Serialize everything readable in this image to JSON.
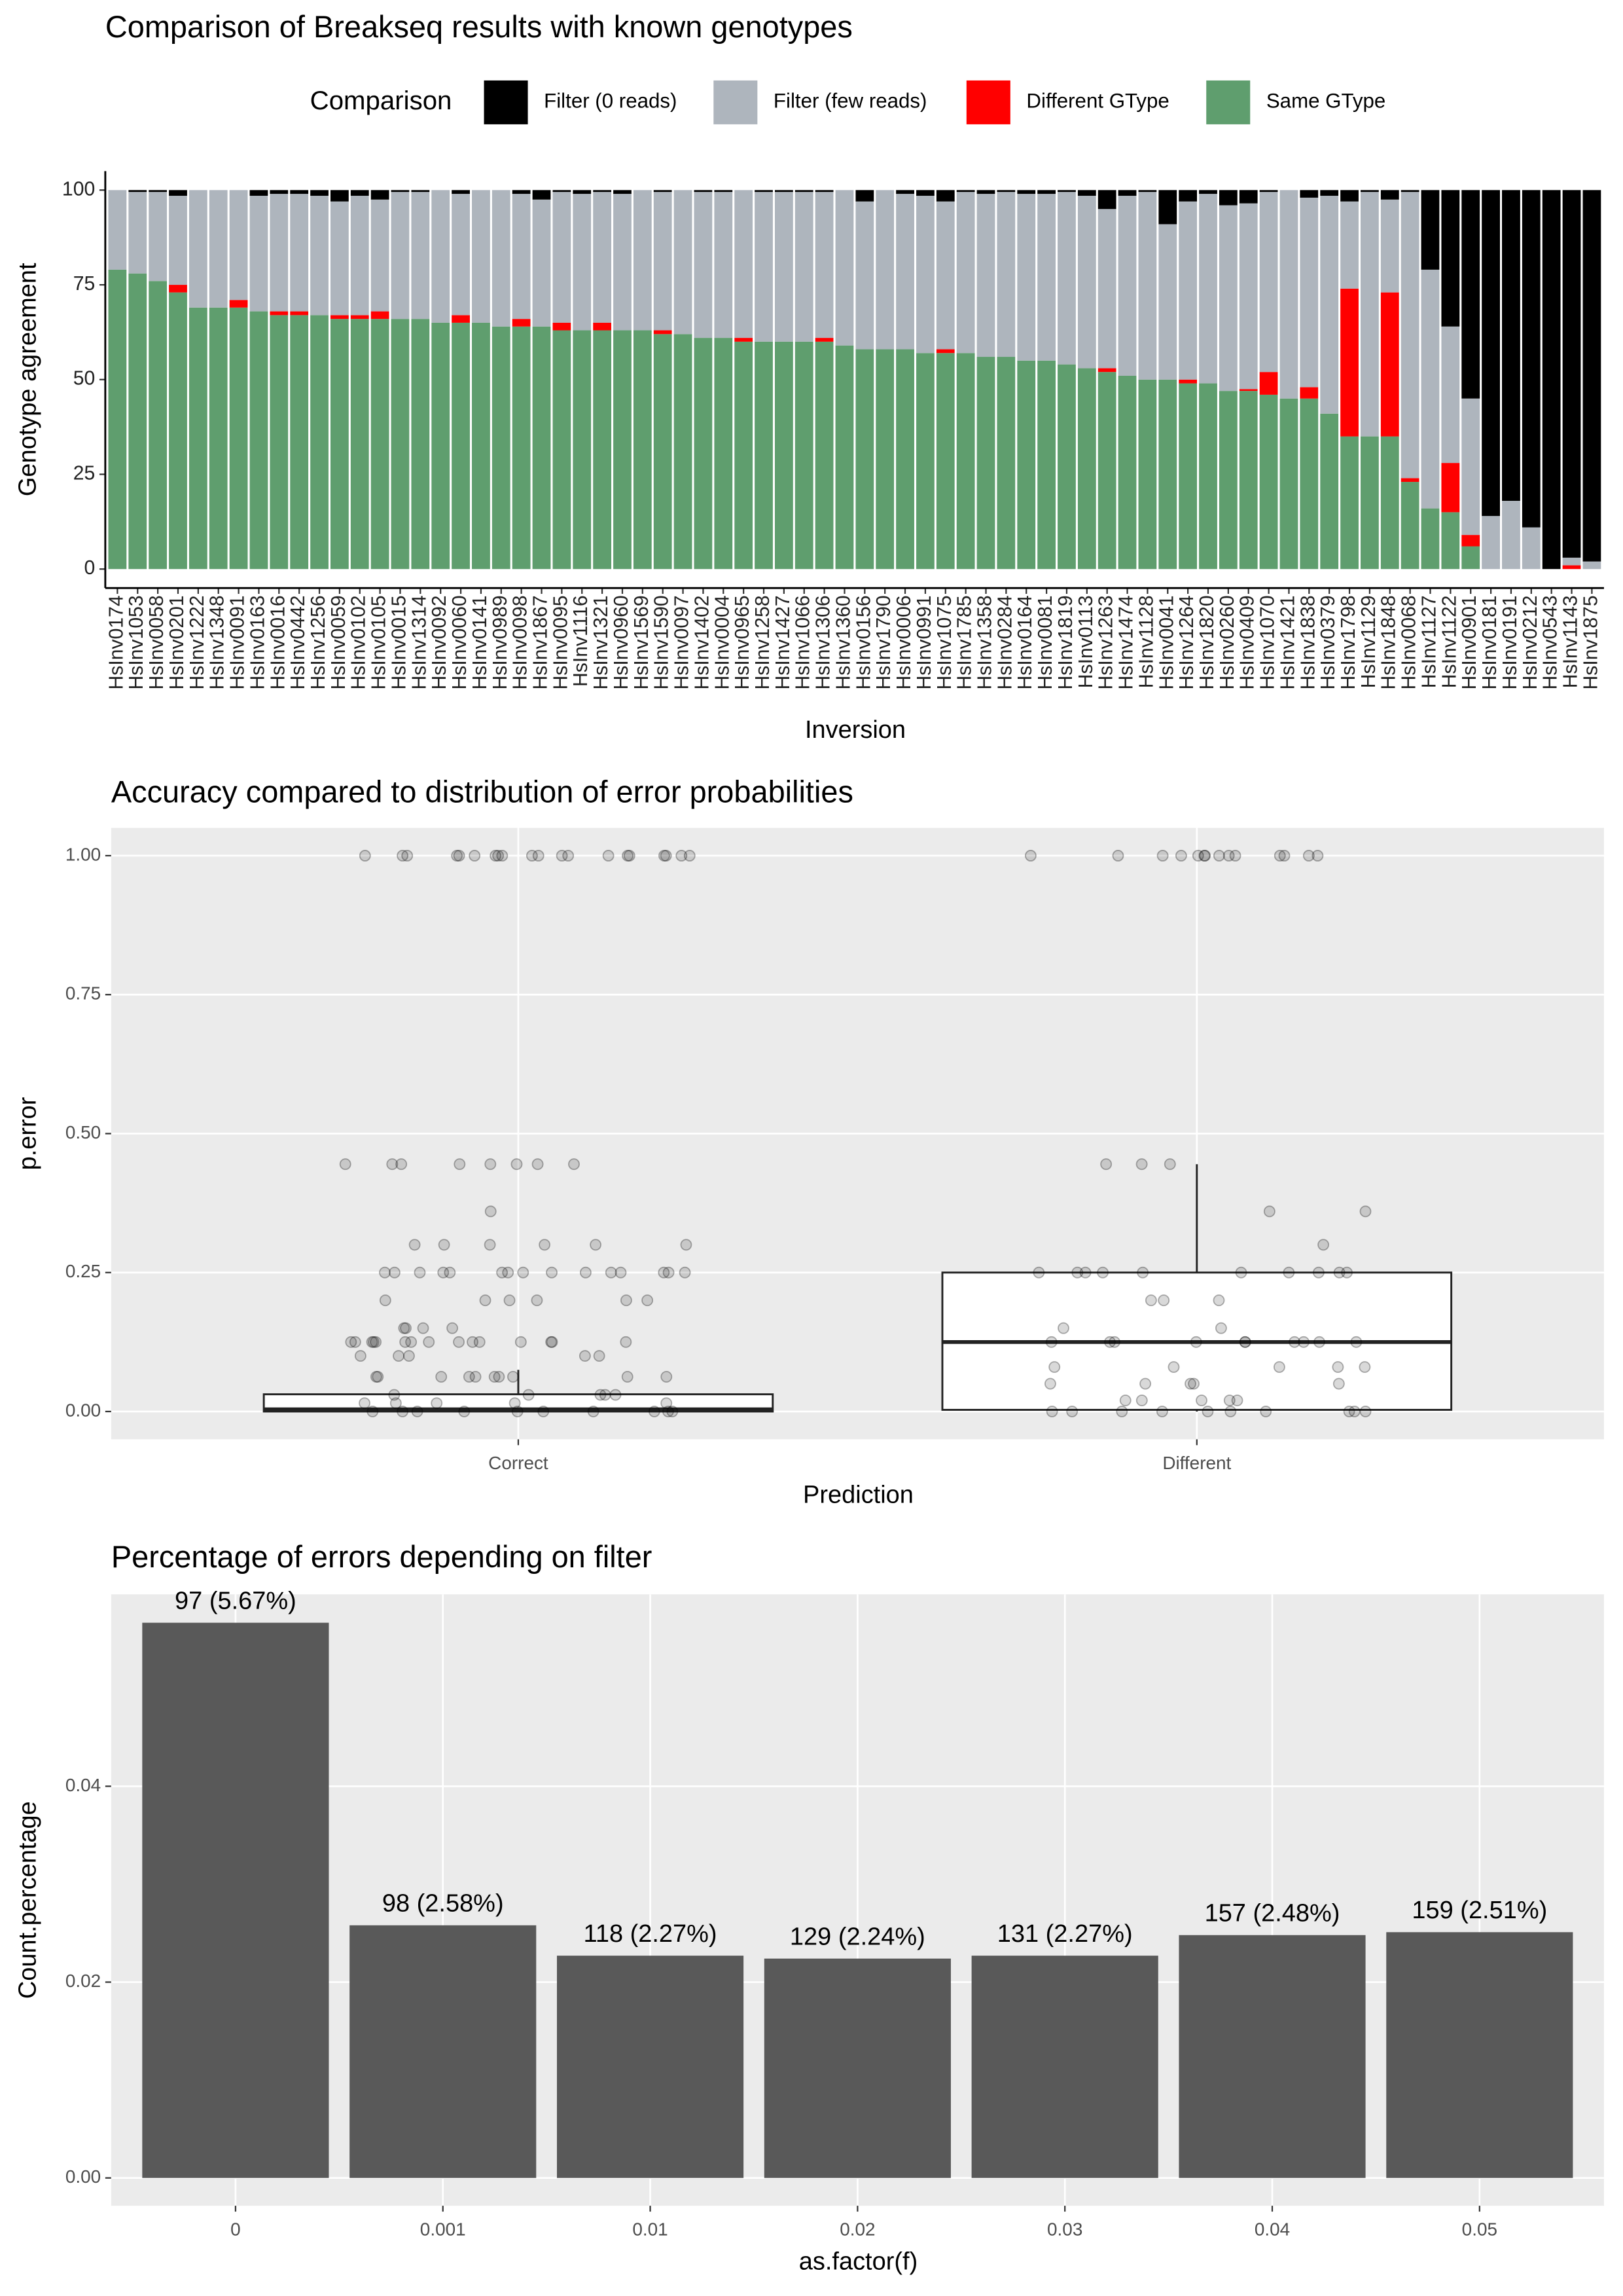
{
  "chart_data": [
    {
      "type": "stacked_bar",
      "title": "Comparison of Breakseq results with known genotypes",
      "x_label": "Inversion",
      "y_label": "Genotype agreement",
      "legend_title": "Comparison",
      "legend_position": "top",
      "categories": [
        "HsInv0174",
        "HsInv1053",
        "HsInv0058",
        "HsInv0201",
        "HsInv1222",
        "HsInv1348",
        "HsInv0091",
        "HsInv0163",
        "HsInv0016",
        "HsInv0442",
        "HsInv1256",
        "HsInv0059",
        "HsInv0102",
        "HsInv0105",
        "HsInv0015",
        "HsInv1314",
        "HsInv0092",
        "HsInv0060",
        "HsInv0141",
        "HsInv0989",
        "HsInv0098",
        "HsInv1867",
        "HsInv0095",
        "HsInv1116",
        "HsInv1321",
        "HsInv0960",
        "HsInv1569",
        "HsInv1590",
        "HsInv0097",
        "HsInv1402",
        "HsInv0004",
        "HsInv0965",
        "HsInv1258",
        "HsInv1427",
        "HsInv1066",
        "HsInv1306",
        "HsInv1360",
        "HsInv0156",
        "HsInv1790",
        "HsInv0006",
        "HsInv0991",
        "HsInv1075",
        "HsInv1785",
        "HsInv1358",
        "HsInv0284",
        "HsInv0164",
        "HsInv0081",
        "HsInv1819",
        "HsInv0113",
        "HsInv1263",
        "HsInv1474",
        "HsInv1128",
        "HsInv0041",
        "HsInv1264",
        "HsInv1820",
        "HsInv0260",
        "HsInv0409",
        "HsInv1070",
        "HsInv1421",
        "HsInv1838",
        "HsInv0379",
        "HsInv1798",
        "HsInv1129",
        "HsInv1848",
        "HsInv0068",
        "HsInv1127",
        "HsInv1122",
        "HsInv0901",
        "HsInv0181",
        "HsInv0191",
        "HsInv0212",
        "HsInv0543",
        "HsInv1143",
        "HsInv1875"
      ],
      "series": [
        {
          "name": "Filter (0 reads)",
          "color": "#000000",
          "values": [
            0,
            0.5,
            0.5,
            1.5,
            0,
            0,
            0,
            1.5,
            1,
            1,
            1.5,
            3,
            1.5,
            2.5,
            0.5,
            0.5,
            0,
            1,
            0,
            0,
            1,
            2.5,
            0.5,
            1,
            0.5,
            1,
            0,
            0.5,
            0,
            0.5,
            0.5,
            0,
            0.5,
            0.5,
            0.5,
            0.5,
            0,
            3,
            0,
            1,
            1.5,
            3,
            0.5,
            1,
            0.5,
            1,
            1,
            0.5,
            1.5,
            5,
            1.5,
            0.5,
            9,
            3,
            1,
            4,
            3.5,
            0.5,
            0,
            2,
            1.5,
            3,
            0.5,
            2.5,
            0.5,
            21,
            36,
            55,
            86,
            82,
            89,
            100,
            97,
            98
          ]
        },
        {
          "name": "Filter (few reads)",
          "color": "#aeb5bd",
          "values": [
            21,
            21.5,
            23.5,
            23.5,
            31,
            31,
            29,
            30.5,
            31,
            31,
            31.5,
            30,
            31.5,
            29.5,
            33.5,
            33.5,
            35,
            32,
            35,
            36,
            33,
            33.5,
            34.5,
            36,
            34.5,
            36,
            37,
            36.5,
            38,
            38.5,
            38.5,
            39,
            39.5,
            39.5,
            39.5,
            38.5,
            41,
            39,
            42,
            41,
            41.5,
            39,
            42.5,
            43,
            43.5,
            44,
            44,
            45.5,
            45.5,
            42,
            47.5,
            49.5,
            41,
            47,
            50,
            49,
            49,
            47.5,
            55,
            50,
            57.5,
            23,
            64.5,
            24.5,
            75.5,
            63,
            36,
            36,
            14,
            18,
            11,
            0,
            2,
            2
          ]
        },
        {
          "name": "Different GType",
          "color": "#ff0000",
          "values": [
            0,
            0,
            0,
            2,
            0,
            0,
            2,
            0,
            1,
            1,
            0,
            1,
            1,
            2,
            0,
            0,
            0,
            2,
            0,
            0,
            2,
            0,
            2,
            0,
            2,
            0,
            0,
            1,
            0,
            0,
            0,
            1,
            0,
            0,
            0,
            1,
            0,
            0,
            0,
            0,
            0,
            1,
            0,
            0,
            0,
            0,
            0,
            0,
            0,
            1,
            0,
            0,
            0,
            1,
            0,
            0,
            0.5,
            6,
            0,
            3,
            0,
            39,
            0,
            38,
            1,
            0,
            13,
            3,
            0,
            0,
            0,
            0,
            1,
            0
          ]
        },
        {
          "name": "Same GType",
          "color": "#5f9e6e",
          "values": [
            79,
            78,
            76,
            73,
            69,
            69,
            69,
            68,
            67,
            67,
            67,
            66,
            66,
            66,
            66,
            66,
            65,
            65,
            65,
            64,
            64,
            64,
            63,
            63,
            63,
            63,
            63,
            62,
            62,
            61,
            61,
            60,
            60,
            60,
            60,
            60,
            59,
            58,
            58,
            58,
            57,
            57,
            57,
            56,
            56,
            55,
            55,
            54,
            53,
            52,
            51,
            50,
            50,
            49,
            49,
            47,
            47,
            46,
            45,
            45,
            41,
            35,
            35,
            35,
            23,
            16,
            15,
            6,
            0,
            0,
            0,
            0,
            0,
            0
          ]
        }
      ],
      "ylim": [
        -5,
        105
      ],
      "yticks": [
        0,
        25,
        50,
        75,
        100
      ],
      "grid": false
    },
    {
      "type": "box",
      "title": "Accuracy compared to distribution of error probabilities",
      "x_label": "Prediction",
      "y_label": "p.error",
      "categories": [
        "Correct",
        "Different"
      ],
      "boxes": [
        {
          "min": 0,
          "q1": 0,
          "median": 0.004,
          "q3": 0.031,
          "max": 0.075
        },
        {
          "min": 0,
          "q1": 0.003,
          "median": 0.125,
          "q3": 0.25,
          "max": 0.445
        }
      ],
      "points": [
        [
          1,
          1,
          1,
          1,
          1,
          1,
          1,
          1,
          1,
          1,
          1,
          1,
          1,
          1,
          1,
          1,
          1,
          1,
          1,
          1,
          0.445,
          0.445,
          0.445,
          0.445,
          0.445,
          0.445,
          0.445,
          0.445,
          0.36,
          0.3,
          0.3,
          0.3,
          0.3,
          0.3,
          0.3,
          0.25,
          0.25,
          0.25,
          0.25,
          0.25,
          0.25,
          0.25,
          0.25,
          0.25,
          0.25,
          0.25,
          0.25,
          0.25,
          0.25,
          0.25,
          0.2,
          0.2,
          0.2,
          0.2,
          0.2,
          0.2,
          0.15,
          0.15,
          0.15,
          0.15,
          0.125,
          0.125,
          0.125,
          0.125,
          0.125,
          0.125,
          0.125,
          0.125,
          0.125,
          0.125,
          0.125,
          0.125,
          0.125,
          0.125,
          0.125,
          0.1,
          0.1,
          0.1,
          0.1,
          0.1,
          0.0625,
          0.0625,
          0.0625,
          0.0625,
          0.0625,
          0.0625,
          0.0625,
          0.0625,
          0.0625,
          0.0625,
          0.03,
          0.03,
          0.03,
          0.03,
          0.03,
          0.015,
          0.015,
          0.015,
          0.015,
          0.015,
          0,
          0,
          0,
          0,
          0,
          0,
          0,
          0,
          0,
          0
        ],
        [
          1,
          1,
          1,
          1,
          1,
          1,
          1,
          1,
          1,
          1,
          1,
          1,
          1,
          1,
          0.445,
          0.445,
          0.445,
          0.36,
          0.36,
          0.3,
          0.25,
          0.25,
          0.25,
          0.25,
          0.25,
          0.25,
          0.25,
          0.25,
          0.25,
          0.25,
          0.2,
          0.2,
          0.2,
          0.15,
          0.15,
          0.125,
          0.125,
          0.125,
          0.125,
          0.125,
          0.125,
          0.125,
          0.125,
          0.125,
          0.125,
          0.08,
          0.08,
          0.08,
          0.08,
          0.08,
          0.05,
          0.05,
          0.05,
          0.05,
          0.05,
          0.02,
          0.02,
          0.02,
          0.02,
          0.02,
          0,
          0,
          0,
          0,
          0,
          0,
          0,
          0,
          0,
          0
        ]
      ],
      "ylim": [
        -0.05,
        1.05
      ],
      "yticks": [
        {
          "value": 0,
          "label": "0.00"
        },
        {
          "value": 0.25,
          "label": "0.25"
        },
        {
          "value": 0.5,
          "label": "0.50"
        },
        {
          "value": 0.75,
          "label": "0.75"
        },
        {
          "value": 1,
          "label": "1.00"
        }
      ],
      "grid": true
    },
    {
      "type": "bar",
      "title": "Percentage of errors depending on filter",
      "x_label": "as.factor(f)",
      "y_label": "Count.percentage",
      "categories": [
        "0",
        "0.001",
        "0.01",
        "0.02",
        "0.03",
        "0.04",
        "0.05"
      ],
      "values": [
        0.0567,
        0.0258,
        0.0227,
        0.0224,
        0.0227,
        0.0248,
        0.0251
      ],
      "value_labels": [
        "97 (5.67%)",
        "98 (2.58%)",
        "118 (2.27%)",
        "129 (2.24%)",
        "131 (2.27%)",
        "157 (2.48%)",
        "159 (2.51%)"
      ],
      "color": "#595959",
      "ylim": [
        -0.00284,
        0.0596
      ],
      "yticks": [
        {
          "value": 0,
          "label": "0.00"
        },
        {
          "value": 0.02,
          "label": "0.02"
        },
        {
          "value": 0.04,
          "label": "0.04"
        }
      ],
      "grid": true
    }
  ]
}
